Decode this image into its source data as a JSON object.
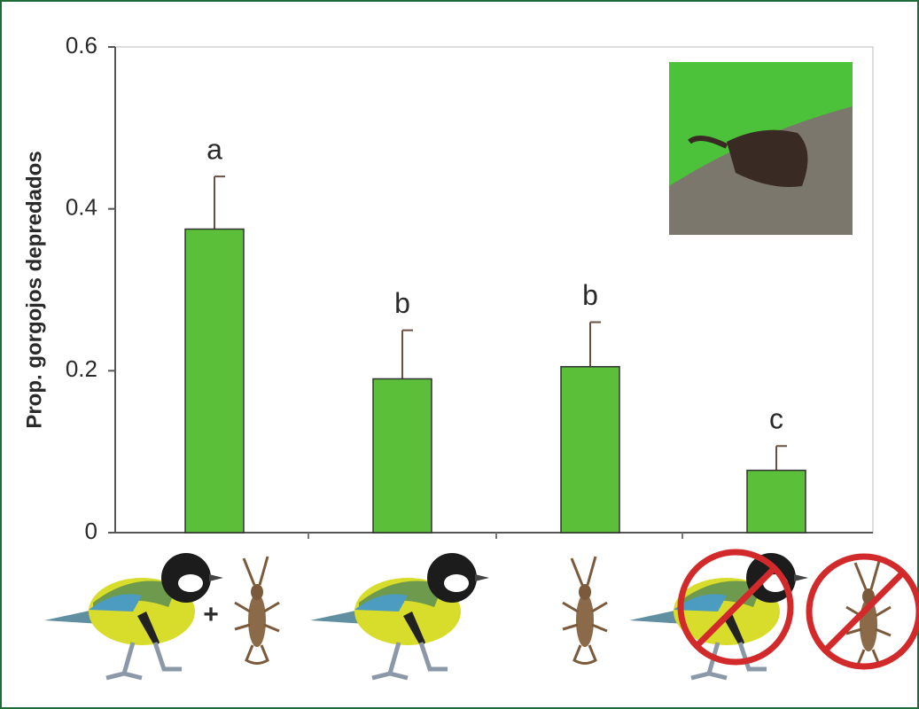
{
  "chart_data": {
    "type": "bar",
    "y_label": "Prop. gorgojos depredados",
    "categories": [
      null,
      null,
      null,
      null
    ],
    "values": [
      0.375,
      0.19,
      0.205,
      0.077
    ],
    "errors": [
      0.065,
      0.06,
      0.055,
      0.03
    ],
    "annotations": [
      "a",
      "b",
      "b",
      "c"
    ],
    "illustration_text": "+",
    "color": "#5cbf3a",
    "ylim": [
      0,
      0.6
    ],
    "yticks": [
      0,
      0.2,
      0.4,
      0.6
    ]
  }
}
